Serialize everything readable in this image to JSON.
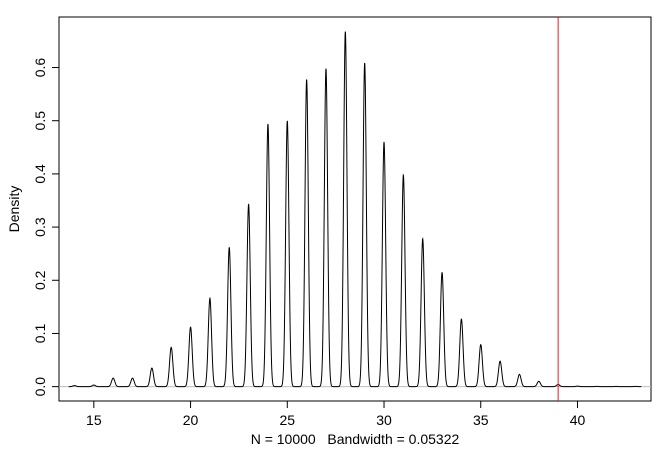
{
  "chart_data": {
    "type": "line",
    "title": "",
    "xlabel": "N = 10000   Bandwidth = 0.05322",
    "ylabel": "Density",
    "xlim": [
      13.2,
      43.8
    ],
    "ylim": [
      -0.027,
      0.695
    ],
    "x_ticks": [
      15,
      20,
      25,
      30,
      35,
      40
    ],
    "y_ticks": [
      0.0,
      0.1,
      0.2,
      0.3,
      0.4,
      0.5,
      0.6
    ],
    "y_tick_labels": [
      "0.0",
      "0.1",
      "0.2",
      "0.3",
      "0.4",
      "0.5",
      "0.6"
    ],
    "grid": false,
    "baseline_y": 0,
    "bandwidth": 0.05322,
    "peaks": {
      "x": [
        14,
        15,
        16,
        17,
        18,
        19,
        20,
        21,
        22,
        23,
        24,
        25,
        26,
        27,
        28,
        29,
        30,
        31,
        32,
        33,
        34,
        35,
        36,
        37,
        38,
        39,
        40,
        41,
        42,
        43
      ],
      "y": [
        0.002,
        0.003,
        0.016,
        0.016,
        0.035,
        0.074,
        0.112,
        0.166,
        0.262,
        0.343,
        0.494,
        0.5,
        0.578,
        0.598,
        0.668,
        0.609,
        0.46,
        0.398,
        0.278,
        0.215,
        0.127,
        0.079,
        0.048,
        0.023,
        0.01,
        0.004,
        0.001,
        0.0005,
        0.0005,
        0.0005
      ]
    },
    "reference_line": {
      "x": 39,
      "color": "#e41a1c"
    },
    "line_color": "#000000",
    "baseline_color": "#bdbdbd"
  }
}
